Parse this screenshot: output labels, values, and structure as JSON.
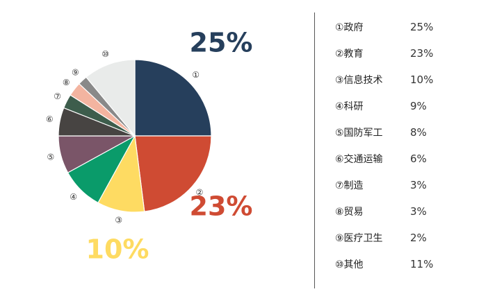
{
  "chart_data": {
    "type": "pie",
    "slices": [
      {
        "marker": "①",
        "name": "政府",
        "value": 25,
        "label": "25%",
        "color": "#263f5c"
      },
      {
        "marker": "②",
        "name": "教育",
        "value": 23,
        "label": "23%",
        "color": "#cf4b33"
      },
      {
        "marker": "③",
        "name": "信息技术",
        "value": 10,
        "label": "10%",
        "color": "#fedb62"
      },
      {
        "marker": "④",
        "name": "科研",
        "value": 9,
        "label": "9%",
        "color": "#0a9b6a"
      },
      {
        "marker": "⑤",
        "name": "国防军工",
        "value": 8,
        "label": "8%",
        "color": "#7a5568"
      },
      {
        "marker": "⑥",
        "name": "交通运输",
        "value": 6,
        "label": "6%",
        "color": "#474442"
      },
      {
        "marker": "⑦",
        "name": "制造",
        "value": 3,
        "label": "3%",
        "color": "#3d5d4c"
      },
      {
        "marker": "⑧",
        "name": "贸易",
        "value": 3,
        "label": "3%",
        "color": "#f3b4a0"
      },
      {
        "marker": "⑨",
        "name": "医疗卫生",
        "value": 2,
        "label": "2%",
        "color": "#898989"
      },
      {
        "marker": "⑩",
        "name": "其他",
        "value": 11,
        "label": "11%",
        "color": "#e9ebea"
      }
    ],
    "highlight": [
      {
        "label": "25%",
        "color": "#263f5c"
      },
      {
        "label": "23%",
        "color": "#cf4b33"
      },
      {
        "label": "10%",
        "color": "#fedb62"
      }
    ]
  }
}
